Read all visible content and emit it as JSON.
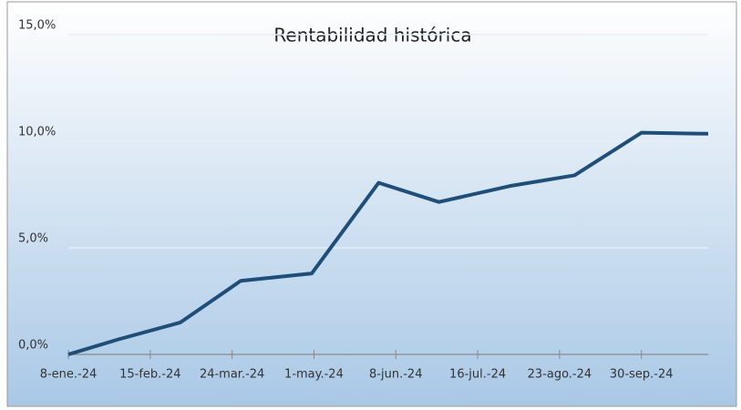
{
  "chart_data": {
    "type": "line",
    "title": "Rentabilidad histórica",
    "x": [
      "2024-01-08",
      "2024-01-31",
      "2024-02-29",
      "2024-03-28",
      "2024-04-30",
      "2024-05-31",
      "2024-06-28",
      "2024-07-31",
      "2024-08-30",
      "2024-09-30",
      "2024-10-31"
    ],
    "series": [
      {
        "name": "Rentabilidad",
        "color": "#1f4e79",
        "values": [
          0,
          0.7,
          1.5,
          3.45,
          3.8,
          8.05,
          7.15,
          7.9,
          8.4,
          10.4,
          10.35
        ]
      }
    ],
    "xlim": [
      "2024-01-08",
      "2024-10-31"
    ],
    "xticks": [
      {
        "value": "2024-01-08",
        "label": "8-ene.-24"
      },
      {
        "value": "2024-02-15",
        "label": "15-feb.-24"
      },
      {
        "value": "2024-03-24",
        "label": "24-mar.-24"
      },
      {
        "value": "2024-05-01",
        "label": "1-may.-24"
      },
      {
        "value": "2024-06-08",
        "label": "8-jun.-24"
      },
      {
        "value": "2024-07-16",
        "label": "16-jul.-24"
      },
      {
        "value": "2024-08-23",
        "label": "23-ago.-24"
      },
      {
        "value": "2024-09-30",
        "label": "30-sep.-24"
      }
    ],
    "ylim": [
      0,
      15
    ],
    "yticks": [
      {
        "value": 0,
        "label": "0,0%"
      },
      {
        "value": 5,
        "label": "5,0%"
      },
      {
        "value": 10,
        "label": "10,0%"
      },
      {
        "value": 15,
        "label": "15,0%"
      }
    ],
    "grid": true
  }
}
